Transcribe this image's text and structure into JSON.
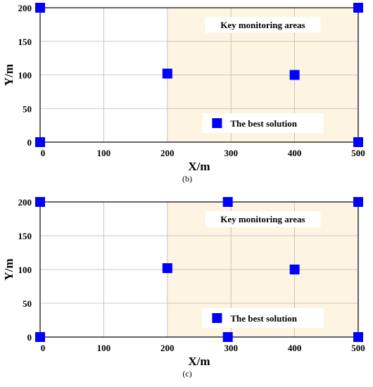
{
  "chart_data": [
    {
      "type": "scatter",
      "panel_label": "(b)",
      "xlabel": "X/m",
      "ylabel": "Y/m",
      "xlim": [
        0,
        500
      ],
      "ylim": [
        0,
        200
      ],
      "xticks": [
        0,
        100,
        200,
        300,
        400,
        500
      ],
      "yticks": [
        0,
        50,
        100,
        150,
        200
      ],
      "xtick_labels": [
        "0",
        "100",
        "200",
        "300",
        "400",
        "500"
      ],
      "ytick_labels": [
        "0",
        "50",
        "100",
        "150",
        "200"
      ],
      "grid": true,
      "region": {
        "label": "Key monitoring areas",
        "x_range": [
          200,
          500
        ],
        "y_range": [
          0,
          200
        ],
        "color": "#fdf5e2"
      },
      "legend": {
        "label": "The best solution",
        "placement": "bottom-right"
      },
      "marker_color": "#0000ff",
      "series": [
        {
          "name": "The best solution",
          "points": [
            [
              0,
              200
            ],
            [
              500,
              200
            ],
            [
              200,
              102
            ],
            [
              400,
              100
            ],
            [
              0,
              0
            ],
            [
              500,
              0
            ]
          ]
        }
      ]
    },
    {
      "type": "scatter",
      "panel_label": "(c)",
      "xlabel": "X/m",
      "ylabel": "Y/m",
      "xlim": [
        0,
        500
      ],
      "ylim": [
        0,
        200
      ],
      "xticks": [
        0,
        100,
        200,
        300,
        400,
        500
      ],
      "yticks": [
        0,
        50,
        100,
        150,
        200
      ],
      "xtick_labels": [
        "0",
        "100",
        "200",
        "300",
        "400",
        "500"
      ],
      "ytick_labels": [
        "0",
        "50",
        "100",
        "150",
        "200"
      ],
      "grid": true,
      "region": {
        "label": "Key monitoring areas",
        "x_range": [
          200,
          500
        ],
        "y_range": [
          0,
          200
        ],
        "color": "#fdf5e2"
      },
      "legend": {
        "label": "The best solution",
        "placement": "bottom-right"
      },
      "marker_color": "#0000ff",
      "series": [
        {
          "name": "The best solution",
          "points": [
            [
              0,
              200
            ],
            [
              295,
              200
            ],
            [
              500,
              200
            ],
            [
              200,
              102
            ],
            [
              400,
              100
            ],
            [
              0,
              0
            ],
            [
              295,
              0
            ],
            [
              500,
              0
            ]
          ]
        }
      ]
    }
  ]
}
